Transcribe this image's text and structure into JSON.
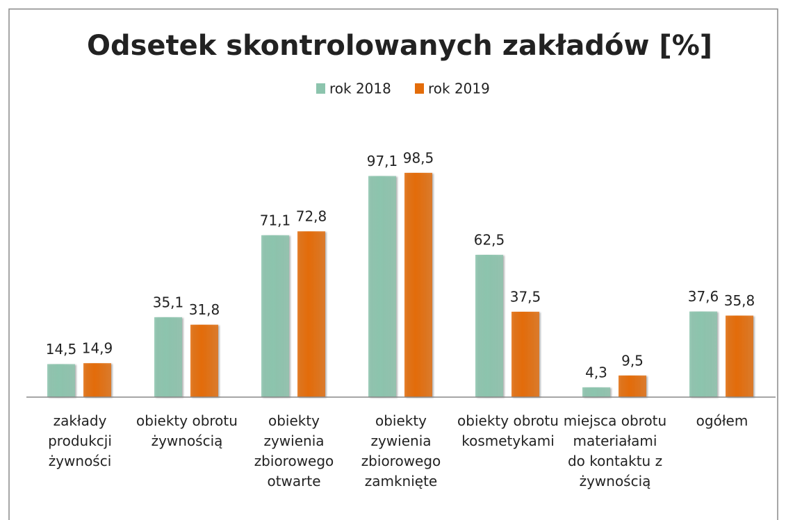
{
  "chart_data": {
    "type": "bar",
    "title": "Odsetek skontrolowanych zakładów [%]",
    "categories": [
      "zakłady produkcji żywności",
      "obiekty obrotu żywnością",
      "obiekty zywienia zbiorowego otwarte",
      "obiekty zywienia zbiorowego zamknięte",
      "obiekty obrotu kosmetykami",
      "miejsca obrotu materiałami do kontaktu z żywnością",
      "ogółem"
    ],
    "series": [
      {
        "name": "rok 2018",
        "color": "#8cc4ad",
        "values": [
          14.5,
          35.1,
          71.1,
          97.1,
          62.5,
          4.3,
          37.6
        ],
        "value_labels": [
          "14,5",
          "35,1",
          "71,1",
          "97,1",
          "62,5",
          "4,3",
          "37,6"
        ]
      },
      {
        "name": "rok 2019",
        "color": "#e36c0a",
        "values": [
          14.9,
          31.8,
          72.8,
          98.5,
          37.5,
          9.5,
          35.8
        ],
        "value_labels": [
          "14,9",
          "31,8",
          "72,8",
          "98,5",
          "37,5",
          "9,5",
          "35,8"
        ]
      }
    ],
    "ylim": [
      0,
      100
    ],
    "legend": "top"
  }
}
